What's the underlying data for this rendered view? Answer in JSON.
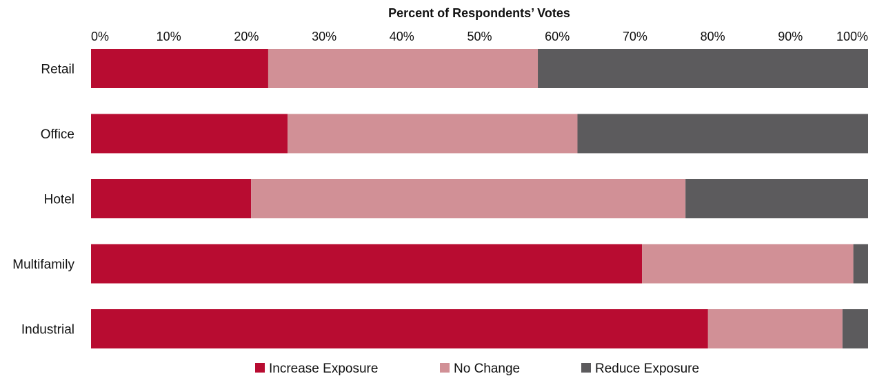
{
  "chart_data": {
    "type": "bar",
    "orientation": "horizontal",
    "stacked": true,
    "title": "Percent of Respondents’ Votes",
    "x_axis_position": "top",
    "xlim": [
      0,
      100
    ],
    "xticks": [
      0,
      10,
      20,
      30,
      40,
      50,
      60,
      70,
      80,
      90,
      100
    ],
    "xtick_labels": [
      "0%",
      "10%",
      "20%",
      "30%",
      "40%",
      "50%",
      "60%",
      "70%",
      "80%",
      "90%",
      "100%"
    ],
    "grid": false,
    "legend_position": "bottom",
    "categories": [
      "Retail",
      "Office",
      "Hotel",
      "Multifamily",
      "Industrial"
    ],
    "series": [
      {
        "name": "Increase Exposure",
        "color": "#b80c31",
        "values": [
          22.8,
          25.3,
          20.6,
          70.9,
          79.4
        ]
      },
      {
        "name": "No Change",
        "color": "#d19096",
        "values": [
          34.7,
          37.3,
          55.9,
          27.2,
          17.3
        ]
      },
      {
        "name": "Reduce Exposure",
        "color": "#5c5b5d",
        "values": [
          42.5,
          37.4,
          23.5,
          1.9,
          3.3
        ]
      }
    ]
  }
}
